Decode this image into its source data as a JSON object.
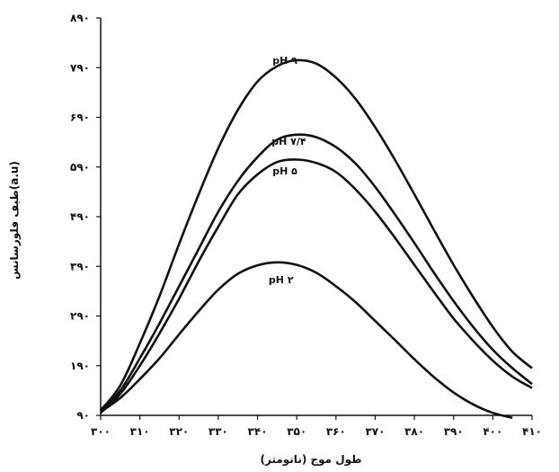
{
  "chart_data": {
    "type": "line",
    "title": "",
    "xlabel": "طول موج (نانومتر)",
    "ylabel": "طیف فلورسانس(a.u)",
    "xlim": [
      300,
      410
    ],
    "ylim": [
      90,
      890
    ],
    "x_ticks": [
      300,
      310,
      320,
      330,
      340,
      350,
      360,
      370,
      380,
      390,
      400,
      410
    ],
    "x_tick_labels": [
      "۳۰۰",
      "۳۱۰",
      "۳۲۰",
      "۳۳۰",
      "۳۴۰",
      "۳۵۰",
      "۳۶۰",
      "۳۷۰",
      "۳۸۰",
      "۳۹۰",
      "۴۰۰",
      "۴۱۰"
    ],
    "y_ticks": [
      90,
      190,
      290,
      390,
      490,
      590,
      690,
      790,
      890
    ],
    "y_tick_labels": [
      "۹۰",
      "۱۹۰",
      "۲۹۰",
      "۳۹۰",
      "۴۹۰",
      "۵۹۰",
      "۶۹۰",
      "۷۹۰",
      "۸۹۰"
    ],
    "grid": false,
    "legend": "none",
    "series": [
      {
        "name": "pH ۹",
        "x": [
          300,
          305,
          310,
          315,
          320,
          325,
          330,
          335,
          340,
          345,
          350,
          355,
          360,
          365,
          370,
          375,
          380,
          385,
          390,
          395,
          400,
          405,
          410
        ],
        "y": [
          100,
          150,
          235,
          330,
          435,
          535,
          628,
          705,
          762,
          793,
          805,
          798,
          770,
          727,
          670,
          605,
          535,
          463,
          393,
          328,
          268,
          218,
          185
        ]
      },
      {
        "name": "pH ۷/۴",
        "x": [
          300,
          305,
          310,
          315,
          320,
          325,
          330,
          335,
          340,
          345,
          350,
          355,
          360,
          365,
          370,
          375,
          380,
          385,
          390,
          395,
          400,
          405,
          410
        ],
        "y": [
          100,
          140,
          205,
          275,
          350,
          425,
          500,
          562,
          610,
          645,
          655,
          650,
          630,
          597,
          550,
          495,
          437,
          377,
          320,
          268,
          222,
          185,
          153
        ]
      },
      {
        "name": "pH ۵",
        "x": [
          300,
          305,
          310,
          315,
          320,
          325,
          330,
          335,
          340,
          345,
          350,
          355,
          360,
          365,
          370,
          375,
          380,
          385,
          390,
          395,
          400,
          405,
          410
        ],
        "y": [
          95,
          133,
          190,
          255,
          325,
          400,
          470,
          535,
          575,
          600,
          605,
          598,
          580,
          545,
          500,
          448,
          393,
          338,
          285,
          240,
          200,
          168,
          145
        ]
      },
      {
        "name": "pH ۲",
        "x": [
          300,
          305,
          310,
          315,
          320,
          325,
          330,
          335,
          340,
          345,
          350,
          355,
          360,
          365,
          370,
          375,
          380,
          385,
          390,
          395,
          400,
          405
        ],
        "y": [
          97,
          125,
          163,
          205,
          253,
          300,
          343,
          375,
          392,
          398,
          393,
          377,
          350,
          318,
          280,
          242,
          203,
          167,
          136,
          112,
          95,
          85
        ]
      }
    ],
    "series_labels": [
      {
        "series": "pH ۹",
        "x": 347,
        "y": 805
      },
      {
        "series": "pH ۷/۴",
        "x": 348,
        "y": 642
      },
      {
        "series": "pH ۵",
        "x": 347,
        "y": 582
      },
      {
        "series": "pH ۲",
        "x": 346,
        "y": 363
      }
    ]
  }
}
